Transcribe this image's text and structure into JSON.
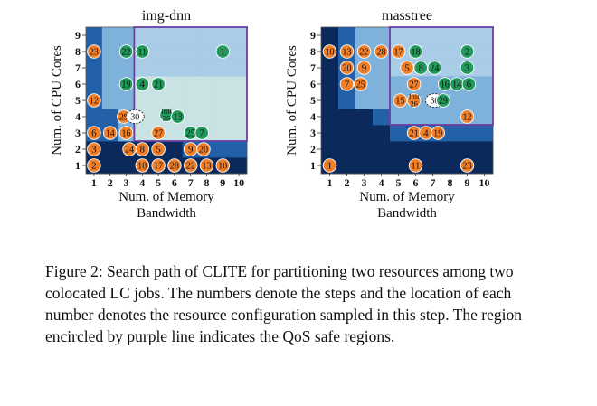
{
  "chart_data": [
    {
      "type": "heatmap",
      "title": "img-dnn",
      "xlabel": "Num. of Memory\nBandwidth",
      "ylabel": "Num. of CPU Cores",
      "x_ticks": [
        "1",
        "2",
        "3",
        "4",
        "5",
        "6",
        "7",
        "8",
        "9",
        "10"
      ],
      "y_ticks": [
        "1",
        "2",
        "3",
        "4",
        "5",
        "6",
        "7",
        "8",
        "9"
      ],
      "qos_safe_region": {
        "x_from": 4,
        "x_to": 10,
        "y_from": 3,
        "y_to": 9
      },
      "points": [
        {
          "label": "23",
          "x": 1,
          "y": 8,
          "color": "orange"
        },
        {
          "label": "22",
          "x": 3,
          "y": 8,
          "color": "green"
        },
        {
          "label": "11",
          "x": 4,
          "y": 8,
          "color": "green"
        },
        {
          "label": "1",
          "x": 9,
          "y": 8,
          "color": "green"
        },
        {
          "label": "19",
          "x": 3,
          "y": 6,
          "color": "green"
        },
        {
          "label": "4",
          "x": 4,
          "y": 6,
          "color": "green"
        },
        {
          "label": "21",
          "x": 5,
          "y": 6,
          "color": "green"
        },
        {
          "label": "12",
          "x": 1,
          "y": 5,
          "color": "orange"
        },
        {
          "label": "29",
          "x": 2.85,
          "y": 4,
          "color": "orange"
        },
        {
          "label": "30",
          "x": 3.55,
          "y": 4,
          "color": "white"
        },
        {
          "label": "Init\n26",
          "x": 5.5,
          "y": 4.1,
          "color": "green"
        },
        {
          "label": "13",
          "x": 6.2,
          "y": 4,
          "color": "green"
        },
        {
          "label": "6",
          "x": 1,
          "y": 3,
          "color": "orange"
        },
        {
          "label": "14",
          "x": 2,
          "y": 3,
          "color": "orange"
        },
        {
          "label": "16",
          "x": 3,
          "y": 3,
          "color": "orange"
        },
        {
          "label": "27",
          "x": 5,
          "y": 3,
          "color": "orange"
        },
        {
          "label": "25",
          "x": 7,
          "y": 3,
          "color": "green"
        },
        {
          "label": "7",
          "x": 7.7,
          "y": 3,
          "color": "green"
        },
        {
          "label": "3",
          "x": 1,
          "y": 2,
          "color": "orange"
        },
        {
          "label": "24",
          "x": 3.2,
          "y": 2,
          "color": "orange"
        },
        {
          "label": "8",
          "x": 4,
          "y": 2,
          "color": "orange"
        },
        {
          "label": "5",
          "x": 5,
          "y": 2,
          "color": "orange"
        },
        {
          "label": "9",
          "x": 7,
          "y": 2,
          "color": "orange"
        },
        {
          "label": "20",
          "x": 7.8,
          "y": 2,
          "color": "orange"
        },
        {
          "label": "2",
          "x": 1,
          "y": 1,
          "color": "orange"
        },
        {
          "label": "18",
          "x": 4,
          "y": 1,
          "color": "orange"
        },
        {
          "label": "17",
          "x": 5,
          "y": 1,
          "color": "orange"
        },
        {
          "label": "28",
          "x": 6,
          "y": 1,
          "color": "orange"
        },
        {
          "label": "22",
          "x": 7,
          "y": 1,
          "color": "orange"
        },
        {
          "label": "13",
          "x": 8,
          "y": 1,
          "color": "orange"
        },
        {
          "label": "10",
          "x": 9,
          "y": 1,
          "color": "orange"
        }
      ]
    },
    {
      "type": "heatmap",
      "title": "masstree",
      "xlabel": "Num. of Memory\nBandwidth",
      "ylabel": "Num. of CPU Cores",
      "x_ticks": [
        "1",
        "2",
        "3",
        "4",
        "5",
        "6",
        "7",
        "8",
        "9",
        "10"
      ],
      "y_ticks": [
        "1",
        "2",
        "3",
        "4",
        "5",
        "6",
        "7",
        "8",
        "9"
      ],
      "qos_safe_region": {
        "x_from": 5,
        "x_to": 10,
        "y_from": 4,
        "y_to": 9
      },
      "points": [
        {
          "label": "10",
          "x": 1,
          "y": 8,
          "color": "orange"
        },
        {
          "label": "13",
          "x": 2,
          "y": 8,
          "color": "orange"
        },
        {
          "label": "22",
          "x": 3,
          "y": 8,
          "color": "orange"
        },
        {
          "label": "28",
          "x": 4,
          "y": 8,
          "color": "orange"
        },
        {
          "label": "17",
          "x": 5,
          "y": 8,
          "color": "orange"
        },
        {
          "label": "18",
          "x": 6,
          "y": 8,
          "color": "green"
        },
        {
          "label": "2",
          "x": 9,
          "y": 8,
          "color": "green"
        },
        {
          "label": "20",
          "x": 2,
          "y": 7,
          "color": "orange"
        },
        {
          "label": "9",
          "x": 3,
          "y": 7,
          "color": "orange"
        },
        {
          "label": "5",
          "x": 5.5,
          "y": 7,
          "color": "orange"
        },
        {
          "label": "8",
          "x": 6.3,
          "y": 7,
          "color": "green"
        },
        {
          "label": "24",
          "x": 7.1,
          "y": 7,
          "color": "green"
        },
        {
          "label": "3",
          "x": 9,
          "y": 7,
          "color": "green"
        },
        {
          "label": "7",
          "x": 2,
          "y": 6,
          "color": "orange"
        },
        {
          "label": "25",
          "x": 2.8,
          "y": 6,
          "color": "orange"
        },
        {
          "label": "27",
          "x": 5.9,
          "y": 6,
          "color": "orange"
        },
        {
          "label": "16",
          "x": 7.7,
          "y": 6,
          "color": "green"
        },
        {
          "label": "14",
          "x": 8.4,
          "y": 6,
          "color": "green"
        },
        {
          "label": "6",
          "x": 9.1,
          "y": 6,
          "color": "green"
        },
        {
          "label": "15",
          "x": 5.1,
          "y": 5,
          "color": "orange"
        },
        {
          "label": "Init\n26",
          "x": 5.9,
          "y": 5,
          "color": "orange"
        },
        {
          "label": "30",
          "x": 7.1,
          "y": 5,
          "color": "white"
        },
        {
          "label": "29",
          "x": 7.6,
          "y": 5,
          "color": "green"
        },
        {
          "label": "12",
          "x": 9,
          "y": 4,
          "color": "orange"
        },
        {
          "label": "21",
          "x": 5.9,
          "y": 3,
          "color": "orange"
        },
        {
          "label": "4",
          "x": 6.6,
          "y": 3,
          "color": "orange"
        },
        {
          "label": "19",
          "x": 7.3,
          "y": 3,
          "color": "orange"
        },
        {
          "label": "1",
          "x": 1,
          "y": 1,
          "color": "orange"
        },
        {
          "label": "11",
          "x": 6,
          "y": 1,
          "color": "orange"
        },
        {
          "label": "23",
          "x": 9,
          "y": 1,
          "color": "orange"
        }
      ]
    }
  ],
  "caption": "Figure 2: Search path of CLITE for partitioning two resources among two colocated LC jobs. The numbers denote the steps and the location of each number denotes the resource configuration sampled in this step. The region encircled by purple line indicates the QoS safe regions.",
  "colors": {
    "cell_dark": "#0b2a5b",
    "cell_mid": "#2260a8",
    "cell_light": "#7fb2da",
    "cell_lighter": "#a9cde6",
    "cell_safe": "#c9e2e4",
    "orange": "#ef7f29",
    "green": "#219a5c",
    "region_line": "#6b3fa0"
  }
}
